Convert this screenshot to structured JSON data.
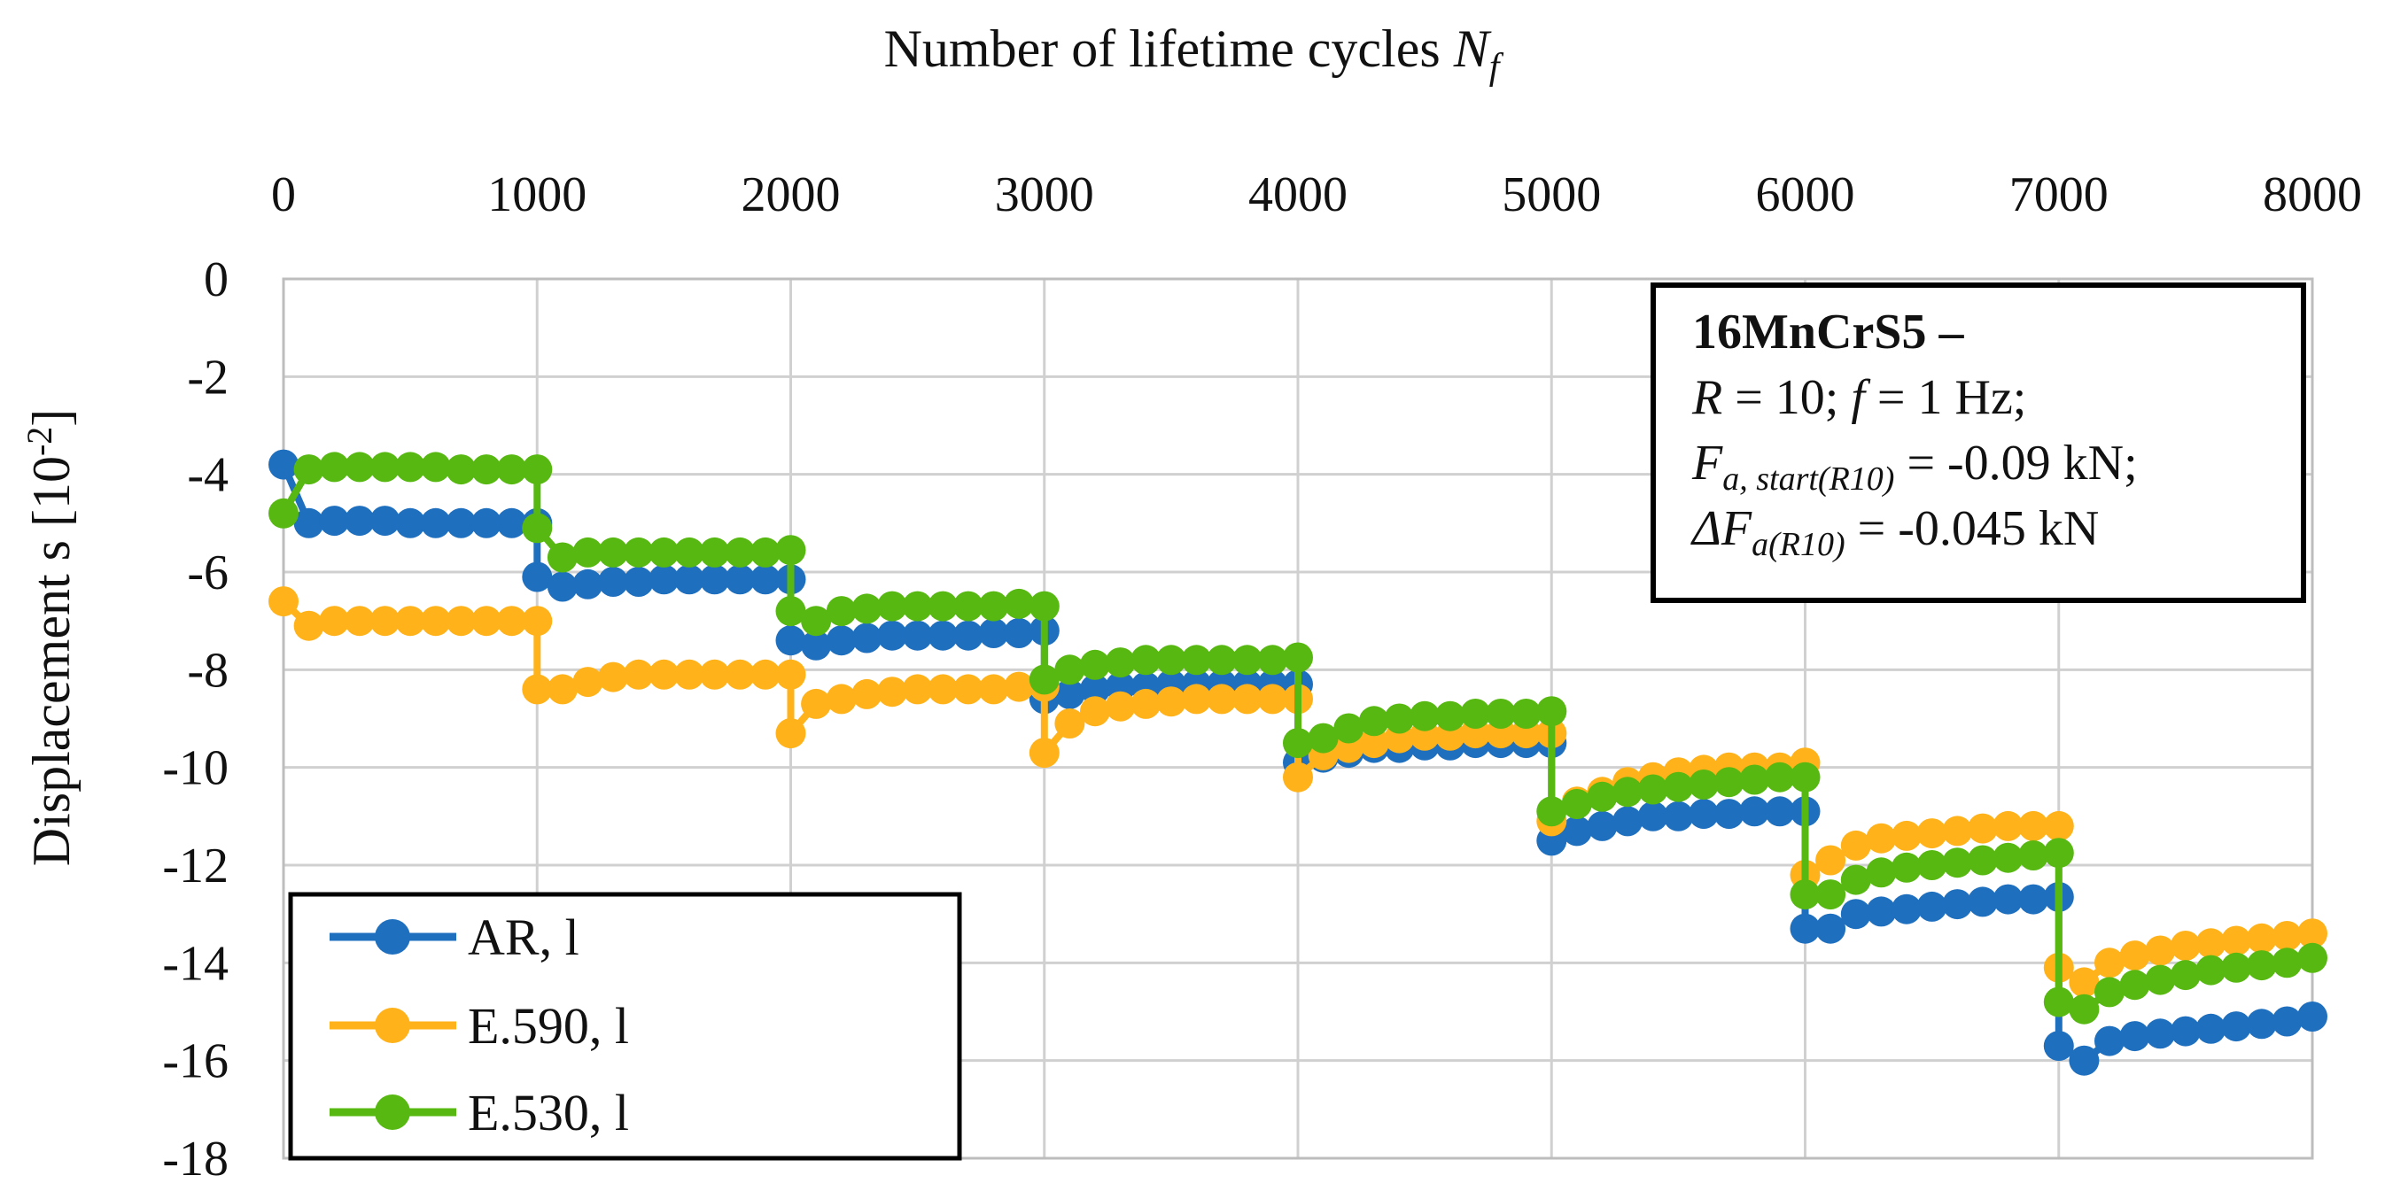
{
  "chart_data": {
    "type": "line",
    "title": "",
    "xlabel": "Number of lifetime cycles",
    "xlabel_symbol": "N",
    "xlabel_symbol_sub": "f",
    "ylabel": "Displacement s [10",
    "ylabel_exp": "-2",
    "ylabel_close": "]",
    "xlim": [
      0,
      8000
    ],
    "ylim": [
      -18,
      0
    ],
    "x_axis_position": "top",
    "xticks": [
      0,
      1000,
      2000,
      3000,
      4000,
      5000,
      6000,
      7000,
      8000
    ],
    "yticks": [
      0,
      -2,
      -4,
      -6,
      -8,
      -10,
      -12,
      -14,
      -16,
      -18
    ],
    "grid": true,
    "legend_position": "bottom-left",
    "series": [
      {
        "name": "AR, l",
        "color": "#1f6fbf",
        "x": [
          0,
          100,
          200,
          300,
          400,
          500,
          600,
          700,
          800,
          900,
          1000,
          1000,
          1100,
          1200,
          1300,
          1400,
          1500,
          1600,
          1700,
          1800,
          1900,
          2000,
          2000,
          2100,
          2200,
          2300,
          2400,
          2500,
          2600,
          2700,
          2800,
          2900,
          3000,
          3000,
          3100,
          3200,
          3300,
          3400,
          3500,
          3600,
          3700,
          3800,
          3900,
          4000,
          4000,
          4100,
          4200,
          4300,
          4400,
          4500,
          4600,
          4700,
          4800,
          4900,
          5000,
          5000,
          5100,
          5200,
          5300,
          5400,
          5500,
          5600,
          5700,
          5800,
          5900,
          6000,
          6000,
          6100,
          6200,
          6300,
          6400,
          6500,
          6600,
          6700,
          6800,
          6900,
          7000,
          7000,
          7100,
          7200,
          7300,
          7400,
          7500,
          7600,
          7700,
          7800,
          7900,
          8000
        ],
        "y": [
          -3.8,
          -5.0,
          -4.95,
          -4.95,
          -4.95,
          -5.0,
          -5.0,
          -5.0,
          -5.0,
          -5.0,
          -5.0,
          -6.1,
          -6.3,
          -6.25,
          -6.2,
          -6.2,
          -6.15,
          -6.15,
          -6.15,
          -6.15,
          -6.15,
          -6.15,
          -7.4,
          -7.5,
          -7.4,
          -7.35,
          -7.3,
          -7.3,
          -7.3,
          -7.3,
          -7.25,
          -7.25,
          -7.2,
          -8.6,
          -8.5,
          -8.4,
          -8.35,
          -8.35,
          -8.3,
          -8.3,
          -8.3,
          -8.3,
          -8.3,
          -8.3,
          -9.9,
          -9.8,
          -9.7,
          -9.6,
          -9.6,
          -9.55,
          -9.55,
          -9.5,
          -9.5,
          -9.5,
          -9.5,
          -11.5,
          -11.3,
          -11.2,
          -11.1,
          -11.0,
          -11.0,
          -10.95,
          -10.95,
          -10.9,
          -10.9,
          -10.9,
          -13.3,
          -13.3,
          -13.0,
          -12.95,
          -12.9,
          -12.85,
          -12.8,
          -12.75,
          -12.7,
          -12.7,
          -12.65,
          -15.7,
          -16.0,
          -15.6,
          -15.5,
          -15.45,
          -15.4,
          -15.35,
          -15.3,
          -15.25,
          -15.2,
          -15.1
        ]
      },
      {
        "name": "E.590, l",
        "color": "#ffb21a",
        "x": [
          0,
          100,
          200,
          300,
          400,
          500,
          600,
          700,
          800,
          900,
          1000,
          1000,
          1100,
          1200,
          1300,
          1400,
          1500,
          1600,
          1700,
          1800,
          1900,
          2000,
          2000,
          2100,
          2200,
          2300,
          2400,
          2500,
          2600,
          2700,
          2800,
          2900,
          3000,
          3000,
          3100,
          3200,
          3300,
          3400,
          3500,
          3600,
          3700,
          3800,
          3900,
          4000,
          4000,
          4100,
          4200,
          4300,
          4400,
          4500,
          4600,
          4700,
          4800,
          4900,
          5000,
          5000,
          5100,
          5200,
          5300,
          5400,
          5500,
          5600,
          5700,
          5800,
          5900,
          6000,
          6000,
          6100,
          6200,
          6300,
          6400,
          6500,
          6600,
          6700,
          6800,
          6900,
          7000,
          7000,
          7100,
          7200,
          7300,
          7400,
          7500,
          7600,
          7700,
          7800,
          7900,
          8000
        ],
        "y": [
          -6.6,
          -7.1,
          -7.0,
          -7.0,
          -7.0,
          -7.0,
          -7.0,
          -7.0,
          -7.0,
          -7.0,
          -7.0,
          -8.4,
          -8.4,
          -8.25,
          -8.15,
          -8.1,
          -8.1,
          -8.1,
          -8.1,
          -8.1,
          -8.1,
          -8.1,
          -9.3,
          -8.7,
          -8.6,
          -8.5,
          -8.45,
          -8.4,
          -8.4,
          -8.4,
          -8.4,
          -8.35,
          -8.35,
          -9.7,
          -9.1,
          -8.85,
          -8.75,
          -8.7,
          -8.65,
          -8.6,
          -8.6,
          -8.6,
          -8.6,
          -8.6,
          -10.2,
          -9.75,
          -9.6,
          -9.5,
          -9.4,
          -9.35,
          -9.35,
          -9.3,
          -9.3,
          -9.3,
          -9.3,
          -11.1,
          -10.7,
          -10.5,
          -10.3,
          -10.2,
          -10.1,
          -10.05,
          -10.0,
          -10.0,
          -10.0,
          -9.9,
          -12.2,
          -11.9,
          -11.6,
          -11.45,
          -11.4,
          -11.35,
          -11.3,
          -11.25,
          -11.2,
          -11.2,
          -11.2,
          -14.1,
          -14.4,
          -14.0,
          -13.85,
          -13.75,
          -13.65,
          -13.6,
          -13.55,
          -13.5,
          -13.45,
          -13.4
        ]
      },
      {
        "name": "E.530, l",
        "color": "#56b810",
        "x": [
          0,
          100,
          200,
          300,
          400,
          500,
          600,
          700,
          800,
          900,
          1000,
          1000,
          1100,
          1200,
          1300,
          1400,
          1500,
          1600,
          1700,
          1800,
          1900,
          2000,
          2000,
          2100,
          2200,
          2300,
          2400,
          2500,
          2600,
          2700,
          2800,
          2900,
          3000,
          3000,
          3100,
          3200,
          3300,
          3400,
          3500,
          3600,
          3700,
          3800,
          3900,
          4000,
          4000,
          4100,
          4200,
          4300,
          4400,
          4500,
          4600,
          4700,
          4800,
          4900,
          5000,
          5000,
          5100,
          5200,
          5300,
          5400,
          5500,
          5600,
          5700,
          5800,
          5900,
          6000,
          6000,
          6100,
          6200,
          6300,
          6400,
          6500,
          6600,
          6700,
          6800,
          6900,
          7000,
          7000,
          7100,
          7200,
          7300,
          7400,
          7500,
          7600,
          7700,
          7800,
          7900,
          8000
        ],
        "y": [
          -4.8,
          -3.9,
          -3.85,
          -3.85,
          -3.85,
          -3.85,
          -3.85,
          -3.9,
          -3.9,
          -3.9,
          -3.9,
          -5.1,
          -5.7,
          -5.6,
          -5.6,
          -5.6,
          -5.6,
          -5.6,
          -5.6,
          -5.6,
          -5.6,
          -5.55,
          -6.8,
          -7.0,
          -6.8,
          -6.75,
          -6.7,
          -6.7,
          -6.7,
          -6.7,
          -6.7,
          -6.65,
          -6.7,
          -8.2,
          -8.0,
          -7.9,
          -7.85,
          -7.8,
          -7.8,
          -7.8,
          -7.8,
          -7.8,
          -7.8,
          -7.75,
          -9.5,
          -9.4,
          -9.2,
          -9.05,
          -9.0,
          -8.95,
          -8.95,
          -8.9,
          -8.9,
          -8.9,
          -8.85,
          -10.9,
          -10.75,
          -10.6,
          -10.5,
          -10.45,
          -10.4,
          -10.35,
          -10.3,
          -10.25,
          -10.2,
          -10.2,
          -12.6,
          -12.6,
          -12.3,
          -12.15,
          -12.05,
          -12.0,
          -11.95,
          -11.9,
          -11.85,
          -11.8,
          -11.75,
          -14.8,
          -14.95,
          -14.6,
          -14.45,
          -14.35,
          -14.25,
          -14.15,
          -14.1,
          -14.05,
          -14.0,
          -13.9
        ]
      }
    ],
    "annotation": {
      "line1": "16MnCrS5 –",
      "line2_R": "R",
      "line2_a": " = 10; ",
      "line2_f": "f",
      "line2_b": " = 1 Hz;",
      "line3_F": "F",
      "line3_sub": "a, start(R10)",
      "line3_rest": " = -0.09 kN;",
      "line4_delta": "ΔF",
      "line4_sub": "a(R10)",
      "line4_rest": " = -0.045 kN"
    }
  }
}
